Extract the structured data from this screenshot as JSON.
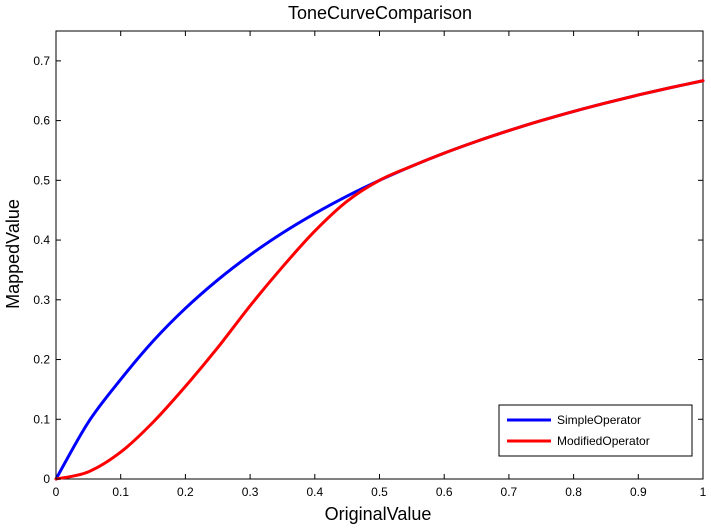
{
  "chart_data": {
    "type": "line",
    "title": "ToneCurveComparison",
    "xlabel": "OriginalValue",
    "ylabel": "MappedValue",
    "xlim": [
      0,
      1
    ],
    "ylim": [
      0,
      0.75
    ],
    "xticks": [
      0,
      0.1,
      0.2,
      0.3,
      0.4,
      0.5,
      0.6,
      0.7,
      0.8,
      0.9,
      1
    ],
    "xtick_labels": [
      "0",
      "0.1",
      "0.2",
      "0.3",
      "0.4",
      "0.5",
      "0.6",
      "0.7",
      "0.8",
      "0.9",
      "1"
    ],
    "yticks": [
      0,
      0.1,
      0.2,
      0.3,
      0.4,
      0.5,
      0.6,
      0.7
    ],
    "ytick_labels": [
      "0",
      "0.1",
      "0.2",
      "0.3",
      "0.4",
      "0.5",
      "0.6",
      "0.7"
    ],
    "grid": false,
    "legend_position": "bottom-right",
    "series": [
      {
        "name": "SimpleOperator",
        "color": "#0000ff",
        "x": [
          0,
          0.05,
          0.1,
          0.15,
          0.2,
          0.25,
          0.3,
          0.35,
          0.4,
          0.45,
          0.5,
          0.55,
          0.6,
          0.65,
          0.7,
          0.75,
          0.8,
          0.85,
          0.9,
          0.95,
          1
        ],
        "y": [
          0,
          0.0952,
          0.1667,
          0.2308,
          0.2857,
          0.3333,
          0.375,
          0.4118,
          0.4444,
          0.4737,
          0.5,
          0.5238,
          0.5455,
          0.5652,
          0.5833,
          0.6,
          0.6154,
          0.6296,
          0.6429,
          0.6552,
          0.6667
        ]
      },
      {
        "name": "ModifiedOperator",
        "color": "#ff0000",
        "x": [
          0,
          0.05,
          0.1,
          0.15,
          0.2,
          0.25,
          0.3,
          0.35,
          0.4,
          0.45,
          0.5,
          0.55,
          0.6,
          0.65,
          0.7,
          0.75,
          0.8,
          0.85,
          0.9,
          0.95,
          1
        ],
        "y": [
          0,
          0.012,
          0.045,
          0.095,
          0.155,
          0.22,
          0.29,
          0.355,
          0.415,
          0.465,
          0.5,
          0.5238,
          0.5455,
          0.5652,
          0.5833,
          0.6,
          0.6154,
          0.6296,
          0.6429,
          0.6552,
          0.6667
        ]
      }
    ]
  }
}
